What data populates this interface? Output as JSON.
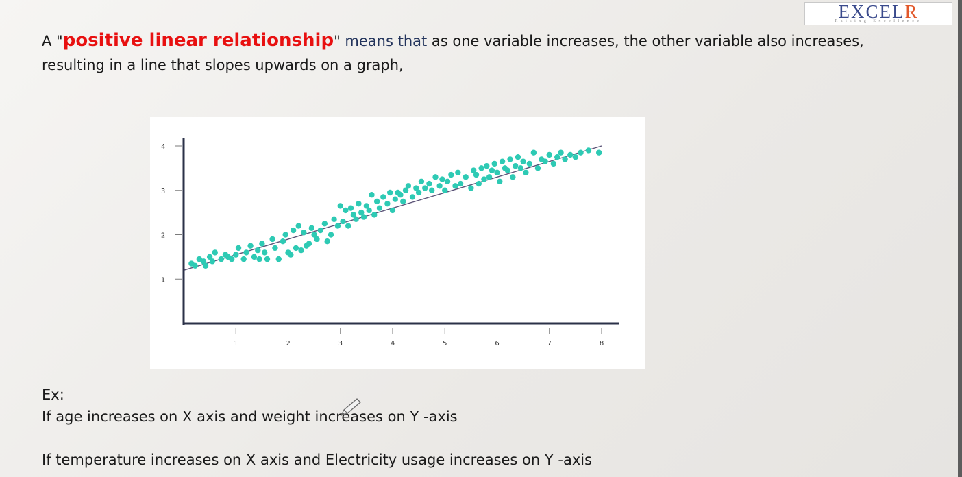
{
  "logo": {
    "main": "EXCEL",
    "main_r": "R",
    "sub": "Raising Excellence"
  },
  "intro": {
    "prefix": "A \"",
    "term": "positive linear relationship",
    "quote_close": "\"",
    "means_that": " means that",
    "rest": " as one variable increases, the other variable also increases, resulting in a line that slopes upwards on a graph,"
  },
  "examples": {
    "label": "Ex:",
    "line1": "If age increases on X axis and weight increases on Y -axis",
    "line2": "If temperature increases on X axis and Electricity usage increases on Y -axis"
  },
  "colors": {
    "point": "#2ecab4",
    "trendline": "#5b5377",
    "axis": "#2b3148",
    "term": "#e81010"
  },
  "chart_data": {
    "type": "scatter",
    "title": "",
    "xlabel": "",
    "ylabel": "",
    "xlim": [
      0,
      8.2
    ],
    "ylim": [
      0,
      4
    ],
    "x_ticks": [
      1,
      2,
      3,
      4,
      5,
      6,
      7,
      8
    ],
    "y_ticks": [
      1,
      2,
      3,
      4
    ],
    "trendline": {
      "x": [
        0,
        8
      ],
      "y": [
        1.2,
        4.0
      ]
    },
    "series": [
      {
        "x": [
          0.15,
          0.22,
          0.3,
          0.38,
          0.42,
          0.5,
          0.55,
          0.6,
          0.72,
          0.8,
          0.85,
          0.92,
          1.0,
          1.05,
          1.15,
          1.2,
          1.28,
          1.35,
          1.42,
          1.45,
          1.5,
          1.55,
          1.6,
          1.7,
          1.75,
          1.82,
          1.9,
          1.95,
          2.0,
          2.05,
          2.1,
          2.15,
          2.2,
          2.25,
          2.3,
          2.35,
          2.4,
          2.45,
          2.5,
          2.55,
          2.62,
          2.7,
          2.75,
          2.82,
          2.88,
          2.95,
          3.0,
          3.05,
          3.1,
          3.15,
          3.2,
          3.25,
          3.3,
          3.35,
          3.4,
          3.45,
          3.5,
          3.55,
          3.6,
          3.65,
          3.7,
          3.75,
          3.82,
          3.9,
          3.95,
          4.0,
          4.05,
          4.1,
          4.15,
          4.2,
          4.25,
          4.3,
          4.38,
          4.45,
          4.5,
          4.55,
          4.62,
          4.7,
          4.75,
          4.82,
          4.9,
          4.95,
          5.0,
          5.05,
          5.12,
          5.2,
          5.25,
          5.3,
          5.4,
          5.5,
          5.55,
          5.6,
          5.65,
          5.7,
          5.75,
          5.8,
          5.85,
          5.9,
          5.95,
          6.0,
          6.05,
          6.1,
          6.15,
          6.2,
          6.25,
          6.3,
          6.35,
          6.4,
          6.45,
          6.5,
          6.55,
          6.62,
          6.7,
          6.78,
          6.85,
          6.92,
          7.0,
          7.08,
          7.15,
          7.22,
          7.3,
          7.4,
          7.5,
          7.6,
          7.75,
          7.95
        ],
        "y": [
          1.35,
          1.3,
          1.45,
          1.4,
          1.3,
          1.5,
          1.4,
          1.6,
          1.45,
          1.55,
          1.5,
          1.45,
          1.55,
          1.7,
          1.45,
          1.6,
          1.75,
          1.5,
          1.65,
          1.45,
          1.8,
          1.6,
          1.45,
          1.9,
          1.7,
          1.45,
          1.85,
          2.0,
          1.6,
          1.55,
          2.1,
          1.7,
          2.2,
          1.65,
          2.05,
          1.75,
          1.8,
          2.15,
          2.0,
          1.9,
          2.1,
          2.25,
          1.85,
          2.0,
          2.35,
          2.2,
          2.65,
          2.3,
          2.55,
          2.2,
          2.6,
          2.45,
          2.35,
          2.7,
          2.5,
          2.4,
          2.65,
          2.55,
          2.9,
          2.45,
          2.75,
          2.6,
          2.85,
          2.7,
          2.95,
          2.55,
          2.8,
          2.95,
          2.9,
          2.75,
          3.0,
          3.1,
          2.85,
          3.05,
          2.95,
          3.2,
          3.05,
          3.15,
          3.0,
          3.3,
          3.1,
          3.25,
          3.0,
          3.2,
          3.35,
          3.1,
          3.4,
          3.15,
          3.3,
          3.05,
          3.45,
          3.35,
          3.15,
          3.5,
          3.25,
          3.55,
          3.3,
          3.45,
          3.6,
          3.4,
          3.2,
          3.65,
          3.5,
          3.45,
          3.7,
          3.3,
          3.55,
          3.75,
          3.5,
          3.65,
          3.4,
          3.6,
          3.85,
          3.5,
          3.7,
          3.65,
          3.8,
          3.6,
          3.75,
          3.85,
          3.7,
          3.8,
          3.75,
          3.85,
          3.9,
          3.85
        ]
      }
    ]
  }
}
